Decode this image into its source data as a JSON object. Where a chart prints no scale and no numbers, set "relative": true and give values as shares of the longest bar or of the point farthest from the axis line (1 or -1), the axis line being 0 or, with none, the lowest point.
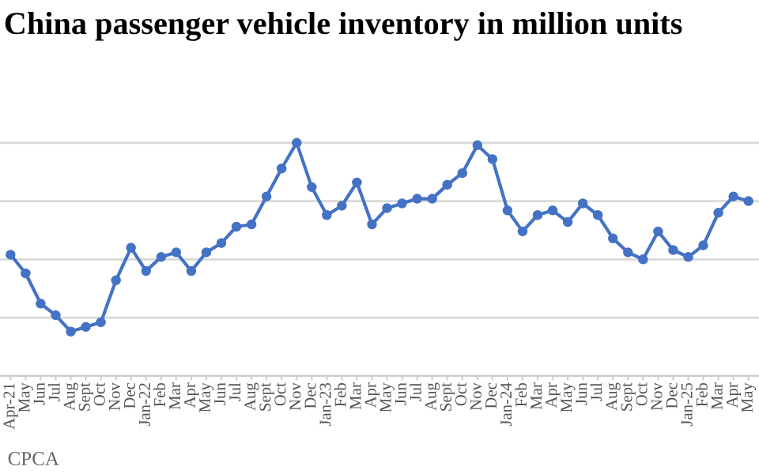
{
  "chart_data": {
    "type": "line",
    "title": "China passenger vehicle inventory in million units",
    "categories": [
      "Apr-21",
      "May",
      "Jun",
      "Jul",
      "Aug",
      "Sept",
      "Oct",
      "Nov",
      "Dec",
      "Jan-22",
      "Feb",
      "Mar",
      "Apr",
      "May",
      "Jun",
      "Jul",
      "Aug",
      "Sept",
      "Oct",
      "Nov",
      "Dec",
      "Jan-23",
      "Feb",
      "Mar",
      "Apr",
      "May",
      "Jun",
      "Jul",
      "Aug",
      "Sept",
      "Oct",
      "Nov",
      "Dec",
      "Jan-24",
      "Feb",
      "Mar",
      "Apr",
      "May",
      "Jun",
      "Jul",
      "Aug",
      "Sept",
      "Oct",
      "Nov",
      "Dec",
      "Jan-25",
      "Feb",
      "Mar",
      "Apr",
      "May"
    ],
    "series": [
      {
        "color": "#4472c4",
        "values": [
          0.52,
          0.44,
          0.31,
          0.26,
          0.19,
          0.21,
          0.23,
          0.41,
          0.55,
          0.45,
          0.51,
          0.53,
          0.45,
          0.53,
          0.57,
          0.64,
          0.65,
          0.77,
          0.89,
          1.0,
          0.81,
          0.69,
          0.73,
          0.83,
          0.65,
          0.72,
          0.74,
          0.76,
          0.76,
          0.82,
          0.87,
          0.99,
          0.93,
          0.71,
          0.62,
          0.69,
          0.71,
          0.66,
          0.74,
          0.69,
          0.59,
          0.53,
          0.5,
          0.62,
          0.54,
          0.51,
          0.56,
          0.7,
          0.77,
          0.75
        ]
      }
    ],
    "relative": true,
    "marker": "circle",
    "line_style": "solid",
    "grid": "y",
    "legend": false,
    "annotations": [
      "CPCA"
    ]
  }
}
